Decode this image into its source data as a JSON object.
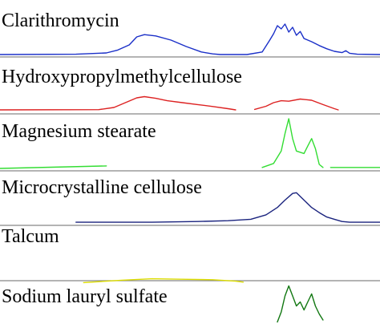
{
  "chart_data": {
    "type": "line",
    "title": "",
    "xlabel": "",
    "ylabel": "",
    "xlim": [
      0,
      100
    ],
    "ylim": [
      0,
      1
    ],
    "grid": false,
    "legend": "none",
    "panels": [
      {
        "label": "Clarithromycin",
        "color": "#1a2fc8",
        "segments": [
          [
            [
              0,
              0
            ],
            [
              20,
              0.01
            ],
            [
              28,
              0.05
            ],
            [
              31,
              0.14
            ],
            [
              34,
              0.3
            ],
            [
              36,
              0.55
            ],
            [
              38,
              0.62
            ],
            [
              41,
              0.58
            ],
            [
              45,
              0.45
            ],
            [
              49,
              0.25
            ],
            [
              53,
              0.08
            ],
            [
              56,
              0.02
            ],
            [
              58,
              0
            ],
            [
              65,
              0
            ],
            [
              69,
              0.08
            ],
            [
              71,
              0.45
            ],
            [
              72,
              0.65
            ],
            [
              73,
              0.9
            ],
            [
              74,
              0.8
            ],
            [
              75,
              0.95
            ],
            [
              76,
              0.7
            ],
            [
              77,
              0.85
            ],
            [
              78,
              0.6
            ],
            [
              79,
              0.72
            ],
            [
              80,
              0.5
            ],
            [
              82,
              0.4
            ],
            [
              84,
              0.28
            ],
            [
              86,
              0.18
            ],
            [
              88,
              0.1
            ],
            [
              90,
              0.06
            ],
            [
              91,
              0.12
            ],
            [
              92,
              0.04
            ],
            [
              94,
              0.01
            ],
            [
              100,
              0
            ]
          ]
        ]
      },
      {
        "label": "Hydroxypropylmethylcellulose",
        "color": "#dd2222",
        "segments": [
          [
            [
              0,
              0
            ],
            [
              26,
              0.01
            ],
            [
              30,
              0.1
            ],
            [
              33,
              0.3
            ],
            [
              36,
              0.5
            ],
            [
              38,
              0.55
            ],
            [
              41,
              0.48
            ],
            [
              44,
              0.38
            ],
            [
              48,
              0.3
            ],
            [
              52,
              0.22
            ],
            [
              56,
              0.14
            ],
            [
              60,
              0.05
            ],
            [
              62,
              0
            ]
          ],
          [
            [
              67,
              0.02
            ],
            [
              70,
              0.15
            ],
            [
              72,
              0.3
            ],
            [
              74,
              0.38
            ],
            [
              76,
              0.36
            ],
            [
              79,
              0.45
            ],
            [
              82,
              0.4
            ],
            [
              85,
              0.22
            ],
            [
              88,
              0.05
            ],
            [
              89,
              0
            ]
          ]
        ]
      },
      {
        "label": "Magnesium stearate",
        "color": "#33dd33",
        "segments": [
          [
            [
              0,
              0
            ],
            [
              28,
              0.05
            ]
          ],
          [
            [
              69,
              0.02
            ],
            [
              72,
              0.1
            ],
            [
              74,
              0.35
            ],
            [
              75,
              0.7
            ],
            [
              76,
              1.0
            ],
            [
              77,
              0.6
            ],
            [
              78,
              0.35
            ],
            [
              80,
              0.3
            ],
            [
              81,
              0.45
            ],
            [
              82,
              0.6
            ],
            [
              83,
              0.4
            ],
            [
              84,
              0.08
            ],
            [
              85,
              0.02
            ]
          ],
          [
            [
              87,
              0.02
            ],
            [
              100,
              0.02
            ]
          ]
        ]
      },
      {
        "label": "Microcrystalline cellulose",
        "color": "#1a237e",
        "segments": [
          [
            [
              20,
              0.02
            ],
            [
              40,
              0.02
            ],
            [
              52,
              0.04
            ],
            [
              60,
              0.06
            ],
            [
              66,
              0.1
            ],
            [
              70,
              0.22
            ],
            [
              73,
              0.42
            ],
            [
              75,
              0.62
            ],
            [
              77,
              0.8
            ],
            [
              78,
              0.82
            ],
            [
              80,
              0.62
            ],
            [
              82,
              0.42
            ],
            [
              84,
              0.28
            ],
            [
              86,
              0.16
            ],
            [
              88,
              0.1
            ],
            [
              90,
              0.04
            ],
            [
              92,
              0.02
            ],
            [
              100,
              0.02
            ]
          ]
        ]
      },
      {
        "label": "Talcum",
        "color": "#dddd00",
        "segments": [
          [
            [
              22,
              0.02
            ],
            [
              32,
              0.12
            ],
            [
              40,
              0.18
            ],
            [
              48,
              0.16
            ],
            [
              56,
              0.14
            ],
            [
              62,
              0.08
            ],
            [
              64,
              0.04
            ]
          ]
        ]
      },
      {
        "label": "Sodium lauryl sulfate",
        "color": "#117711",
        "segments": [
          [
            [
              73,
              0.05
            ],
            [
              74,
              0.3
            ],
            [
              75,
              0.7
            ],
            [
              76,
              0.95
            ],
            [
              77,
              0.7
            ],
            [
              78,
              0.45
            ],
            [
              79,
              0.55
            ],
            [
              80,
              0.35
            ],
            [
              81,
              0.55
            ],
            [
              82,
              0.75
            ],
            [
              83,
              0.45
            ],
            [
              84,
              0.25
            ],
            [
              85,
              0.1
            ]
          ]
        ]
      }
    ]
  }
}
